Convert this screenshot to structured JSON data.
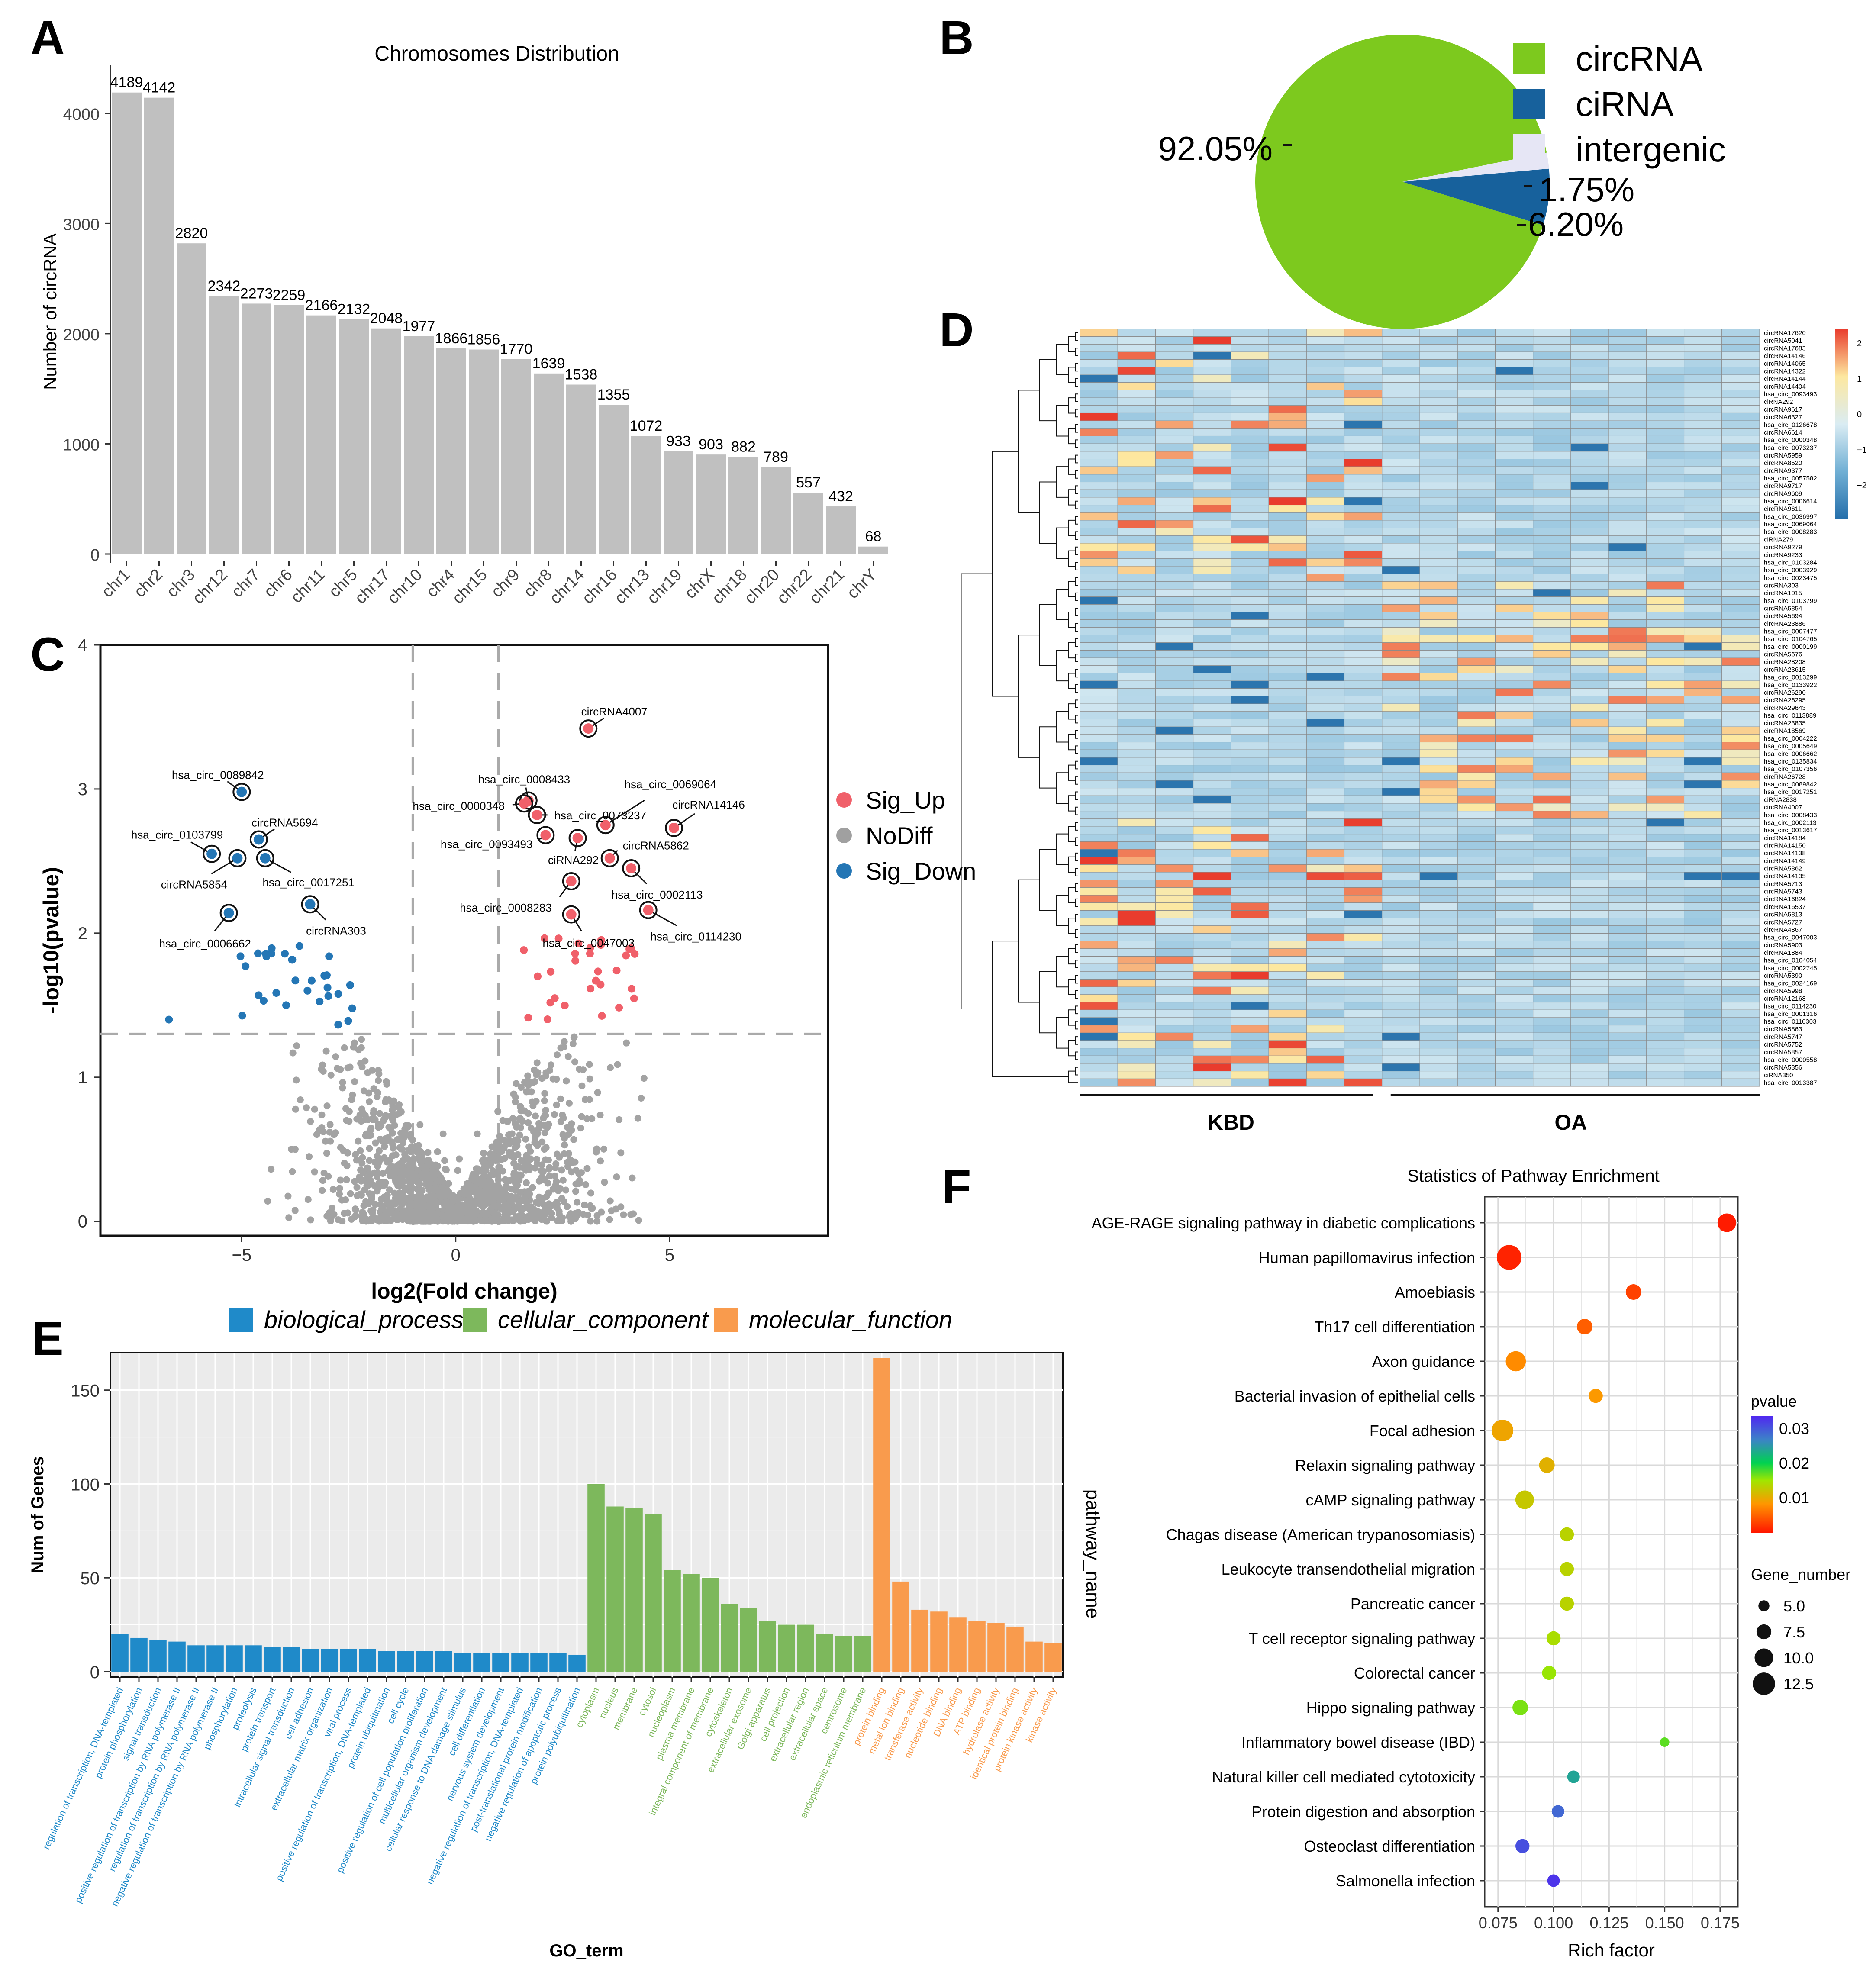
{
  "panel_labels": [
    "A",
    "B",
    "C",
    "D",
    "E",
    "F"
  ],
  "chart_data": [
    {
      "panel": "A",
      "type": "bar",
      "title": "Chromosomes Distribution",
      "xlabel": "",
      "ylabel": "Number of circRNA",
      "ylim": [
        0,
        4400
      ],
      "yticks": [
        0,
        1000,
        2000,
        3000,
        4000
      ],
      "categories": [
        "chr1",
        "chr2",
        "chr3",
        "chr12",
        "chr7",
        "chr6",
        "chr11",
        "chr5",
        "chr17",
        "chr10",
        "chr4",
        "chr15",
        "chr9",
        "chr8",
        "chr14",
        "chr16",
        "chr13",
        "chr19",
        "chrX",
        "chr18",
        "chr20",
        "chr22",
        "chr21",
        "chrY"
      ],
      "values": [
        4189,
        4142,
        2820,
        2342,
        2273,
        2259,
        2166,
        2132,
        2048,
        1977,
        1866,
        1856,
        1770,
        1639,
        1538,
        1355,
        1072,
        933,
        903,
        882,
        789,
        557,
        432,
        68
      ],
      "bar_color": "#c0c0c0"
    },
    {
      "panel": "B",
      "type": "pie",
      "labels": [
        "circRNA",
        "ciRNA",
        "intergenic"
      ],
      "values": [
        92.05,
        6.2,
        1.75
      ],
      "value_labels": [
        "92.05%",
        "6.20%",
        "1.75%"
      ],
      "colors": [
        "#7dc91e",
        "#17619c",
        "#e6e6f5"
      ]
    },
    {
      "panel": "C",
      "type": "scatter",
      "xlabel": "log2(Fold change)",
      "ylabel": "-log10(pvalue)",
      "xlim": [
        -8.3,
        8.7
      ],
      "ylim": [
        -0.1,
        4.0
      ],
      "xticks": [
        -5,
        0,
        5
      ],
      "yticks": [
        0,
        1,
        2,
        3,
        4
      ],
      "thresholds": {
        "fc": [
          -1,
          1
        ],
        "p": 1.3
      },
      "legend": [
        {
          "name": "Sig_Up",
          "color": "#f0606a"
        },
        {
          "name": "NoDiff",
          "color": "#a0a0a0"
        },
        {
          "name": "Sig_Down",
          "color": "#2476b5"
        }
      ],
      "labeled_points": [
        {
          "name": "circRNA4007",
          "x": 3.1,
          "y": 3.42,
          "group": "Sig_Up"
        },
        {
          "name": "hsa_circ_0008433",
          "x": 1.7,
          "y": 2.92,
          "group": "Sig_Up"
        },
        {
          "name": "hsa_circ_0069064",
          "x": 3.5,
          "y": 2.75,
          "group": "Sig_Up"
        },
        {
          "name": "hsa_circ_0000348",
          "x": 1.6,
          "y": 2.9,
          "group": "Sig_Up"
        },
        {
          "name": "hsa_circ_0073237",
          "x": 1.9,
          "y": 2.82,
          "group": "Sig_Up"
        },
        {
          "name": "circRNA14146",
          "x": 5.1,
          "y": 2.73,
          "group": "Sig_Up"
        },
        {
          "name": "hsa_circ_0093493",
          "x": 2.1,
          "y": 2.68,
          "group": "Sig_Up"
        },
        {
          "name": "ciRNA292",
          "x": 2.85,
          "y": 2.66,
          "group": "Sig_Up"
        },
        {
          "name": "circRNA5862",
          "x": 3.6,
          "y": 2.52,
          "group": "Sig_Up"
        },
        {
          "name": "hsa_circ_0008283",
          "x": 2.7,
          "y": 2.36,
          "group": "Sig_Up"
        },
        {
          "name": "hsa_circ_0002113",
          "x": 4.1,
          "y": 2.45,
          "group": "Sig_Up"
        },
        {
          "name": "hsa_circ_0047003",
          "x": 2.7,
          "y": 2.13,
          "group": "Sig_Up"
        },
        {
          "name": "hsa_circ_0114230",
          "x": 4.5,
          "y": 2.16,
          "group": "Sig_Up"
        },
        {
          "name": "hsa_circ_0089842",
          "x": -5.0,
          "y": 2.98,
          "group": "Sig_Down"
        },
        {
          "name": "circRNA5694",
          "x": -4.6,
          "y": 2.65,
          "group": "Sig_Down"
        },
        {
          "name": "hsa_circ_0103799",
          "x": -5.7,
          "y": 2.55,
          "group": "Sig_Down"
        },
        {
          "name": "circRNA5854",
          "x": -5.1,
          "y": 2.52,
          "group": "Sig_Down"
        },
        {
          "name": "hsa_circ_0017251",
          "x": -4.45,
          "y": 2.52,
          "group": "Sig_Down"
        },
        {
          "name": "circRNA303",
          "x": -3.4,
          "y": 2.2,
          "group": "Sig_Down"
        },
        {
          "name": "hsa_circ_0006662",
          "x": -5.3,
          "y": 2.14,
          "group": "Sig_Down"
        }
      ]
    },
    {
      "panel": "D",
      "type": "heatmap",
      "groups": [
        "KBD",
        "OA"
      ],
      "columns_per_group": [
        8,
        10
      ],
      "color_scale_ticks": [
        "2",
        "1",
        "0",
        "-1",
        "-2"
      ],
      "color_range": [
        -2,
        2
      ],
      "row_labels": [
        "circRNA17620",
        "circRNA5041",
        "circRNA17683",
        "circRNA14146",
        "circRNA14065",
        "circRNA14322",
        "circRNA14144",
        "circRNA14404",
        "hsa_circ_0093493",
        "ciRNA292",
        "circRNA9617",
        "circRNA6327",
        "hsa_circ_0126678",
        "circRNA6614",
        "hsa_circ_0000348",
        "hsa_circ_0073237",
        "circRNA5959",
        "circRNA8520",
        "circRNA9377",
        "hsa_circ_0057582",
        "circRNA9717",
        "circRNA9609",
        "hsa_circ_0006614",
        "circRNA9611",
        "hsa_circ_0036997",
        "hsa_circ_0069064",
        "hsa_circ_0008283",
        "ciRNA279",
        "circRNA9279",
        "circRNA9233",
        "hsa_circ_0103284",
        "hsa_circ_0003929",
        "hsa_circ_0023475",
        "circRNA303",
        "circRNA1015",
        "hsa_circ_0103799",
        "circRNA5854",
        "circRNA5694",
        "circRNA23886",
        "hsa_circ_0007477",
        "hsa_circ_0104765",
        "hsa_circ_0000199",
        "circRNA5676",
        "circRNA28208",
        "circRNA23615",
        "hsa_circ_0013299",
        "hsa_circ_0133922",
        "circRNA26290",
        "circRNA26295",
        "circRNA29643",
        "hsa_circ_0113889",
        "circRNA23835",
        "circRNA18569",
        "hsa_circ_0004222",
        "hsa_circ_0005649",
        "hsa_circ_0006662",
        "hsa_circ_0135834",
        "hsa_circ_0107356",
        "circRNA26728",
        "hsa_circ_0089842",
        "hsa_circ_0017251",
        "ciRNA2838",
        "circRNA4007",
        "hsa_circ_0008433",
        "hsa_circ_0002113",
        "hsa_circ_0013617",
        "circRNA14184",
        "circRNA14150",
        "circRNA14138",
        "circRNA14149",
        "circRNA5862",
        "circRNA14135",
        "circRNA5713",
        "circRNA5743",
        "circRNA16824",
        "circRNA16537",
        "circRNA5813",
        "circRNA5727",
        "circRNA4867",
        "hsa_circ_0047003",
        "circRNA5903",
        "circRNA1884",
        "hsa_circ_0104054",
        "hsa_circ_0002745",
        "circRNA5390",
        "hsa_circ_0024169",
        "circRNA5998",
        "circRNA12168",
        "hsa_circ_0114230",
        "hsa_circ_0001316",
        "hsa_circ_0110303",
        "circRNA5863",
        "circRNA5747",
        "circRNA5752",
        "circRNA5857",
        "hsa_circ_0000558",
        "circRNA5356",
        "ciRNA350",
        "hsa_circ_0013387"
      ]
    },
    {
      "panel": "E",
      "type": "bar",
      "xlabel": "GO_term",
      "ylabel": "Num of Genes",
      "ylim": [
        -3,
        170
      ],
      "yticks": [
        0,
        50,
        100,
        150
      ],
      "legend": [
        {
          "name": "biological_process",
          "color": "#1f8ac9"
        },
        {
          "name": "cellular_component",
          "color": "#7db85c"
        },
        {
          "name": "molecular_function",
          "color": "#f99b4d"
        }
      ],
      "series": [
        {
          "name": "biological_process",
          "categories": [
            "regulation of transcription, DNA-templated",
            "protein phosphorylation",
            "signal transduction",
            "positive regulation of transcription by RNA polymerase II",
            "regulation of transcription by RNA polymerase II",
            "negative regulation of transcription by RNA polymerase II",
            "phosphorylation",
            "proteolysis",
            "protein transport",
            "intracellular signal transduction",
            "cell adhesion",
            "extracellular matrix organization",
            "viral process",
            "positive regulation of transcription, DNA-templated",
            "protein ubiquitination",
            "cell cycle",
            "positive regulation of cell population proliferation",
            "multicellular organism development",
            "cellular response to DNA damage stimulus",
            "cell differentiation",
            "nervous system development",
            "negative regulation of transcription, DNA-templated",
            "post-translational protein modification",
            "negative regulation of apoptotic process",
            "protein polyubiquitination"
          ],
          "values": [
            20,
            18,
            17,
            16,
            14,
            14,
            14,
            14,
            13,
            13,
            12,
            12,
            12,
            12,
            11,
            11,
            11,
            11,
            10,
            10,
            10,
            10,
            10,
            10,
            9
          ]
        },
        {
          "name": "cellular_component",
          "categories": [
            "cytoplasm",
            "nucleus",
            "membrane",
            "cytosol",
            "nucleoplasm",
            "plasma membrane",
            "integral component of membrane",
            "cytoskeleton",
            "extracellular exosome",
            "Golgi apparatus",
            "cell projection",
            "extracellular region",
            "extracellular space",
            "centrosome",
            "endoplasmic reticulum membrane"
          ],
          "values": [
            100,
            88,
            87,
            84,
            54,
            52,
            50,
            36,
            34,
            27,
            25,
            25,
            20,
            19,
            19
          ]
        },
        {
          "name": "molecular_function",
          "categories": [
            "protein binding",
            "metal ion binding",
            "transferase activity",
            "nucleotide binding",
            "DNA binding",
            "ATP binding",
            "hydrolase activity",
            "identical protein binding",
            "protein kinase activity",
            "kinase activity"
          ],
          "values": [
            167,
            48,
            33,
            32,
            29,
            27,
            26,
            24,
            16,
            15
          ]
        }
      ]
    },
    {
      "panel": "F",
      "type": "scatter",
      "title": "Statistics of Pathway Enrichment",
      "xlabel": "Rich factor",
      "ylabel": "pathway_name",
      "xlim": [
        0.069,
        0.183
      ],
      "xticks": [
        0.075,
        0.1,
        0.125,
        0.15,
        0.175
      ],
      "xtick_labels": [
        "0.075",
        "0.100",
        "0.125",
        "0.150",
        "0.175"
      ],
      "color_legend_title": "pvalue",
      "color_legend_ticks": [
        "0.03",
        "0.02",
        "0.01"
      ],
      "color_range": [
        0.0,
        0.035
      ],
      "size_legend_title": "Gene_number",
      "size_legend_ticks": [
        "5.0",
        "7.5",
        "10.0",
        "12.5"
      ],
      "size_legend_values": [
        5.0,
        7.5,
        10.0,
        12.5
      ],
      "pathways": [
        {
          "name": "AGE-RAGE signaling pathway in diabetic complications",
          "rich": 0.178,
          "pvalue": 0.0005,
          "genes": 10
        },
        {
          "name": "Human papillomavirus infection",
          "rich": 0.08,
          "pvalue": 0.001,
          "genes": 14
        },
        {
          "name": "Amoebiasis",
          "rich": 0.136,
          "pvalue": 0.003,
          "genes": 8
        },
        {
          "name": "Th17 cell differentiation",
          "rich": 0.114,
          "pvalue": 0.005,
          "genes": 8
        },
        {
          "name": "Axon guidance",
          "rich": 0.083,
          "pvalue": 0.008,
          "genes": 11
        },
        {
          "name": "Bacterial invasion of epithelial cells",
          "rich": 0.119,
          "pvalue": 0.009,
          "genes": 7
        },
        {
          "name": "Focal adhesion",
          "rich": 0.077,
          "pvalue": 0.01,
          "genes": 12
        },
        {
          "name": "Relaxin signaling pathway",
          "rich": 0.097,
          "pvalue": 0.011,
          "genes": 8
        },
        {
          "name": "cAMP signaling pathway",
          "rich": 0.087,
          "pvalue": 0.013,
          "genes": 10
        },
        {
          "name": "Chagas disease (American trypanosomiasis)",
          "rich": 0.106,
          "pvalue": 0.014,
          "genes": 7
        },
        {
          "name": "Leukocyte transendothelial migration",
          "rich": 0.106,
          "pvalue": 0.014,
          "genes": 7
        },
        {
          "name": "Pancreatic cancer",
          "rich": 0.106,
          "pvalue": 0.014,
          "genes": 7
        },
        {
          "name": "T cell receptor signaling pathway",
          "rich": 0.1,
          "pvalue": 0.015,
          "genes": 7
        },
        {
          "name": "Colorectal cancer",
          "rich": 0.098,
          "pvalue": 0.016,
          "genes": 7
        },
        {
          "name": "Hippo signaling pathway",
          "rich": 0.085,
          "pvalue": 0.017,
          "genes": 8
        },
        {
          "name": "Inflammatory bowel disease (IBD)",
          "rich": 0.15,
          "pvalue": 0.018,
          "genes": 4
        },
        {
          "name": "Natural killer cell mediated cytotoxicity",
          "rich": 0.109,
          "pvalue": 0.025,
          "genes": 6
        },
        {
          "name": "Protein digestion and absorption",
          "rich": 0.102,
          "pvalue": 0.03,
          "genes": 6
        },
        {
          "name": "Osteoclast differentiation",
          "rich": 0.086,
          "pvalue": 0.032,
          "genes": 7
        },
        {
          "name": "Salmonella infection",
          "rich": 0.1,
          "pvalue": 0.034,
          "genes": 6
        }
      ]
    }
  ]
}
